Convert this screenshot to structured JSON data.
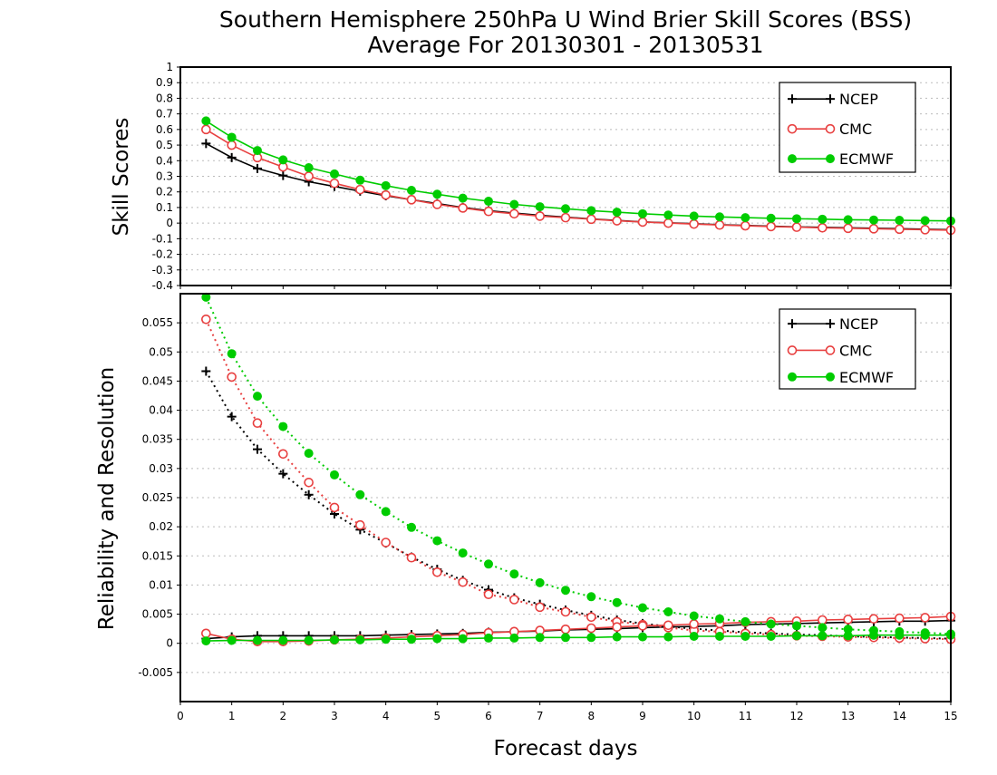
{
  "title_line1": "Southern Hemisphere 250hPa U Wind Brier Skill Scores (BSS)",
  "title_line2": "Average For 20130301 - 20130531",
  "colors": {
    "NCEP": "#000000",
    "CMC": "#e84040",
    "ECMWF": "#00cc00"
  },
  "chart_data": [
    {
      "type": "line",
      "ylabel": "Skill Scores",
      "ylim": [
        -0.4,
        1
      ],
      "yticks": [
        "-0.4",
        "-0.3",
        "-0.2",
        "-0.1",
        "0",
        "0.1",
        "0.2",
        "0.3",
        "0.4",
        "0.5",
        "0.6",
        "0.7",
        "0.8",
        "0.9",
        "1"
      ],
      "xlim": [
        0,
        15
      ],
      "grid": true,
      "legend": "top-right",
      "x": [
        0.5,
        1,
        1.5,
        2,
        2.5,
        3,
        3.5,
        4,
        4.5,
        5,
        5.5,
        6,
        6.5,
        7,
        7.5,
        8,
        8.5,
        9,
        9.5,
        10,
        10.5,
        11,
        11.5,
        12,
        12.5,
        13,
        13.5,
        14,
        14.5,
        15
      ],
      "series": [
        {
          "name": "NCEP",
          "marker": "plus",
          "style": "solid",
          "values": [
            0.51,
            0.42,
            0.35,
            0.305,
            0.265,
            0.235,
            0.205,
            0.175,
            0.15,
            0.125,
            0.1,
            0.08,
            0.065,
            0.05,
            0.038,
            0.027,
            0.017,
            0.008,
            0.002,
            -0.004,
            -0.01,
            -0.015,
            -0.02,
            -0.024,
            -0.027,
            -0.03,
            -0.033,
            -0.036,
            -0.039,
            -0.042
          ]
        },
        {
          "name": "CMC",
          "marker": "open-circle",
          "style": "solid",
          "values": [
            0.6,
            0.5,
            0.42,
            0.36,
            0.3,
            0.255,
            0.215,
            0.18,
            0.15,
            0.12,
            0.097,
            0.075,
            0.06,
            0.045,
            0.035,
            0.025,
            0.015,
            0.007,
            0.0,
            -0.006,
            -0.012,
            -0.017,
            -0.022,
            -0.026,
            -0.03,
            -0.033,
            -0.036,
            -0.039,
            -0.042,
            -0.045
          ]
        },
        {
          "name": "ECMWF",
          "marker": "filled-circle",
          "style": "solid",
          "values": [
            0.655,
            0.55,
            0.465,
            0.405,
            0.355,
            0.315,
            0.275,
            0.24,
            0.21,
            0.185,
            0.16,
            0.14,
            0.12,
            0.105,
            0.092,
            0.08,
            0.07,
            0.06,
            0.052,
            0.045,
            0.04,
            0.035,
            0.031,
            0.028,
            0.025,
            0.022,
            0.02,
            0.018,
            0.016,
            0.014
          ]
        }
      ]
    },
    {
      "type": "line",
      "ylabel": "Reliability and Resolution",
      "xlabel": "Forecast days",
      "ylim": [
        -0.01,
        0.06
      ],
      "yticks": [
        "-0.005",
        "0",
        "0.005",
        "0.01",
        "0.015",
        "0.02",
        "0.025",
        "0.03",
        "0.035",
        "0.04",
        "0.045",
        "0.05",
        "0.055"
      ],
      "xlim": [
        0,
        15
      ],
      "xticks": [
        "0",
        "1",
        "2",
        "3",
        "4",
        "5",
        "6",
        "7",
        "8",
        "9",
        "10",
        "11",
        "12",
        "13",
        "14",
        "15"
      ],
      "grid": true,
      "legend": "top-right",
      "x": [
        0.5,
        1,
        1.5,
        2,
        2.5,
        3,
        3.5,
        4,
        4.5,
        5,
        5.5,
        6,
        6.5,
        7,
        7.5,
        8,
        8.5,
        9,
        9.5,
        10,
        10.5,
        11,
        11.5,
        12,
        12.5,
        13,
        13.5,
        14,
        14.5,
        15
      ],
      "series": [
        {
          "name": "NCEP",
          "component": "resolution",
          "marker": "plus",
          "style": "dotted",
          "values": [
            0.0467,
            0.0389,
            0.0333,
            0.0291,
            0.0255,
            0.0222,
            0.0195,
            0.0172,
            0.0148,
            0.0127,
            0.0108,
            0.0092,
            0.0078,
            0.0067,
            0.0057,
            0.0048,
            0.004,
            0.0034,
            0.0029,
            0.0025,
            0.0022,
            0.0019,
            0.0017,
            0.0015,
            0.0014,
            0.0012,
            0.0011,
            0.001,
            0.0009,
            0.0008
          ]
        },
        {
          "name": "NCEP",
          "component": "reliability",
          "marker": "plus",
          "style": "solid",
          "values": [
            0.0008,
            0.0011,
            0.0013,
            0.0013,
            0.0013,
            0.0013,
            0.0013,
            0.0014,
            0.0015,
            0.0016,
            0.0017,
            0.0019,
            0.002,
            0.0021,
            0.0023,
            0.0024,
            0.0025,
            0.0027,
            0.0028,
            0.0029,
            0.003,
            0.0032,
            0.0033,
            0.0034,
            0.0035,
            0.0036,
            0.0037,
            0.0038,
            0.0038,
            0.0039
          ]
        },
        {
          "name": "CMC",
          "component": "resolution",
          "marker": "open-circle",
          "style": "dotted",
          "values": [
            0.0556,
            0.0457,
            0.0378,
            0.0325,
            0.0276,
            0.0233,
            0.0203,
            0.0173,
            0.0147,
            0.0122,
            0.0105,
            0.0084,
            0.0075,
            0.0062,
            0.0054,
            0.0045,
            0.0037,
            0.0032,
            0.0027,
            0.0022,
            0.002,
            0.0017,
            0.0015,
            0.0013,
            0.0012,
            0.0011,
            0.001,
            0.0009,
            0.0008,
            0.0007
          ]
        },
        {
          "name": "CMC",
          "component": "reliability",
          "marker": "open-circle",
          "style": "solid",
          "values": [
            0.0017,
            0.0007,
            0.0003,
            0.0003,
            0.0004,
            0.0006,
            0.0007,
            0.0009,
            0.0011,
            0.0013,
            0.0015,
            0.0018,
            0.002,
            0.0022,
            0.0024,
            0.0026,
            0.0028,
            0.003,
            0.0031,
            0.0033,
            0.0034,
            0.0036,
            0.0037,
            0.0038,
            0.004,
            0.0041,
            0.0042,
            0.0043,
            0.0044,
            0.0046
          ]
        },
        {
          "name": "ECMWF",
          "component": "resolution",
          "marker": "filled-circle",
          "style": "dotted",
          "values": [
            0.0594,
            0.0497,
            0.0424,
            0.0372,
            0.0326,
            0.0289,
            0.0255,
            0.0226,
            0.0199,
            0.0176,
            0.0155,
            0.0136,
            0.0119,
            0.0104,
            0.0091,
            0.008,
            0.007,
            0.0061,
            0.0054,
            0.0047,
            0.0042,
            0.0037,
            0.0033,
            0.003,
            0.0027,
            0.0024,
            0.0022,
            0.002,
            0.0018,
            0.0016
          ]
        },
        {
          "name": "ECMWF",
          "component": "reliability",
          "marker": "filled-circle",
          "style": "solid",
          "values": [
            0.0004,
            0.0005,
            0.0005,
            0.0005,
            0.0005,
            0.0006,
            0.0006,
            0.0007,
            0.0007,
            0.0008,
            0.0008,
            0.0009,
            0.0009,
            0.001,
            0.001,
            0.001,
            0.0011,
            0.0011,
            0.0011,
            0.0012,
            0.0012,
            0.0012,
            0.0012,
            0.0013,
            0.0013,
            0.0013,
            0.0014,
            0.0014,
            0.0014,
            0.0014
          ]
        }
      ]
    }
  ]
}
